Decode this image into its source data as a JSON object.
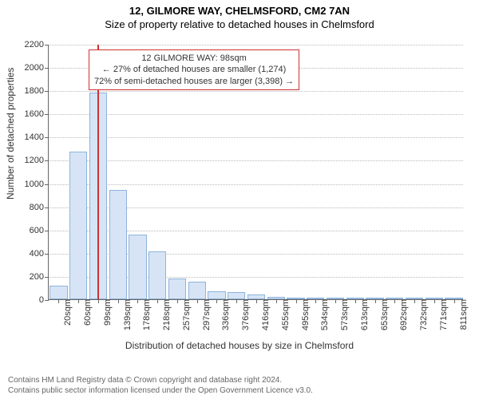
{
  "header": {
    "title": "12, GILMORE WAY, CHELMSFORD, CM2 7AN",
    "subtitle": "Size of property relative to detached houses in Chelmsford"
  },
  "chart": {
    "type": "histogram",
    "ylabel": "Number of detached properties",
    "xlabel": "Distribution of detached houses by size in Chelmsford",
    "ylim": [
      0,
      2200
    ],
    "ytick_step": 200,
    "background_color": "#ffffff",
    "grid_color": "#bbbbbb",
    "bar_fill": "#d6e4f5",
    "bar_border": "#8fb3db",
    "marker_line_color": "#cc3333",
    "marker_value": 98,
    "xticks": [
      "20sqm",
      "60sqm",
      "99sqm",
      "139sqm",
      "178sqm",
      "218sqm",
      "257sqm",
      "297sqm",
      "336sqm",
      "376sqm",
      "416sqm",
      "455sqm",
      "495sqm",
      "534sqm",
      "573sqm",
      "613sqm",
      "653sqm",
      "692sqm",
      "732sqm",
      "771sqm",
      "811sqm"
    ],
    "categories": [
      20,
      60,
      99,
      139,
      178,
      218,
      257,
      297,
      336,
      376,
      416,
      455,
      495,
      534,
      573,
      613,
      653,
      692,
      732,
      771,
      811
    ],
    "values": [
      120,
      1270,
      1780,
      940,
      560,
      410,
      180,
      150,
      70,
      60,
      40,
      20,
      15,
      10,
      8,
      6,
      5,
      4,
      3,
      2,
      2
    ],
    "annotation": {
      "line1": "12 GILMORE WAY: 98sqm",
      "line2": "← 27% of detached houses are smaller (1,274)",
      "line3": "72% of semi-detached houses are larger (3,398) →",
      "border_color": "#cc3333"
    }
  },
  "footer": {
    "line1": "Contains HM Land Registry data © Crown copyright and database right 2024.",
    "line2": "Contains public sector information licensed under the Open Government Licence v3.0."
  }
}
